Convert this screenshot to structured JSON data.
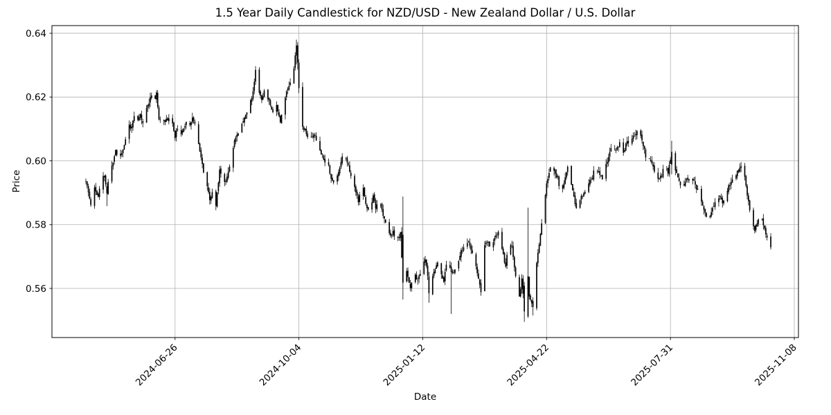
{
  "figure": {
    "background": "#ffffff"
  },
  "chart_data": {
    "type": "candlestick",
    "title": "1.5 Year Daily Candlestick for NZD/USD - New Zealand Dollar / U.S. Dollar",
    "xlabel": "Date",
    "ylabel": "Price",
    "grid": true,
    "legend": null,
    "candle_color": "#000000",
    "grid_color": "#b0b0b0",
    "frame_color": "#000000",
    "start_date": "2024-04-15",
    "total_days": 554,
    "ylim": [
      0.5446,
      0.6424
    ],
    "y_ticks": [
      {
        "value": 0.56,
        "label": "0.56"
      },
      {
        "value": 0.58,
        "label": "0.58"
      },
      {
        "value": 0.6,
        "label": "0.60"
      },
      {
        "value": 0.62,
        "label": "0.62"
      },
      {
        "value": 0.64,
        "label": "0.64"
      }
    ],
    "x_ticks": [
      {
        "day": 72,
        "label": "2024-06-26"
      },
      {
        "day": 172,
        "label": "2024-10-04"
      },
      {
        "day": 272,
        "label": "2025-01-12"
      },
      {
        "day": 372,
        "label": "2025-04-22"
      },
      {
        "day": 472,
        "label": "2025-07-31"
      },
      {
        "day": 572,
        "label": "2025-11-08"
      }
    ],
    "price_range_observed": {
      "low": 0.5495,
      "high": 0.638
    },
    "keypoints_day_close": [
      [
        0,
        0.5935
      ],
      [
        4,
        0.5865
      ],
      [
        7,
        0.5915
      ],
      [
        10,
        0.5885
      ],
      [
        12,
        0.5935
      ],
      [
        15,
        0.5955
      ],
      [
        17,
        0.5898
      ],
      [
        19,
        0.5965
      ],
      [
        22,
        0.5995
      ],
      [
        24,
        0.6035
      ],
      [
        26,
        0.6
      ],
      [
        29,
        0.6025
      ],
      [
        32,
        0.6065
      ],
      [
        34,
        0.6125
      ],
      [
        36,
        0.61
      ],
      [
        39,
        0.6135
      ],
      [
        41,
        0.6115
      ],
      [
        44,
        0.6145
      ],
      [
        46,
        0.6115
      ],
      [
        49,
        0.6165
      ],
      [
        51,
        0.6185
      ],
      [
        53,
        0.621
      ],
      [
        55,
        0.6175
      ],
      [
        57,
        0.6215
      ],
      [
        59,
        0.6125
      ],
      [
        62,
        0.6135
      ],
      [
        64,
        0.6125
      ],
      [
        67,
        0.6135
      ],
      [
        70,
        0.6115
      ],
      [
        72,
        0.6075
      ],
      [
        74,
        0.6105
      ],
      [
        76,
        0.6065
      ],
      [
        78,
        0.609
      ],
      [
        81,
        0.6125
      ],
      [
        84,
        0.6115
      ],
      [
        86,
        0.6135
      ],
      [
        89,
        0.61
      ],
      [
        92,
        0.6035
      ],
      [
        95,
        0.5965
      ],
      [
        98,
        0.592
      ],
      [
        100,
        0.5875
      ],
      [
        102,
        0.59
      ],
      [
        105,
        0.586
      ],
      [
        108,
        0.5975
      ],
      [
        111,
        0.5925
      ],
      [
        114,
        0.595
      ],
      [
        117,
        0.6005
      ],
      [
        120,
        0.6065
      ],
      [
        123,
        0.6085
      ],
      [
        126,
        0.612
      ],
      [
        129,
        0.6145
      ],
      [
        132,
        0.617
      ],
      [
        135,
        0.6215
      ],
      [
        137,
        0.6285
      ],
      [
        139,
        0.6225
      ],
      [
        142,
        0.6195
      ],
      [
        145,
        0.6225
      ],
      [
        148,
        0.6185
      ],
      [
        151,
        0.6155
      ],
      [
        154,
        0.6175
      ],
      [
        157,
        0.6125
      ],
      [
        159,
        0.617
      ],
      [
        162,
        0.6215
      ],
      [
        165,
        0.625
      ],
      [
        168,
        0.6295
      ],
      [
        170,
        0.6362
      ],
      [
        171,
        0.6308
      ],
      [
        172,
        0.6228
      ],
      [
        175,
        0.611
      ],
      [
        178,
        0.6085
      ],
      [
        181,
        0.6065
      ],
      [
        184,
        0.6085
      ],
      [
        187,
        0.6055
      ],
      [
        190,
        0.6025
      ],
      [
        193,
        0.6
      ],
      [
        196,
        0.5985
      ],
      [
        198,
        0.5945
      ],
      [
        201,
        0.5925
      ],
      [
        204,
        0.5965
      ],
      [
        207,
        0.6015
      ],
      [
        209,
        0.6025
      ],
      [
        212,
        0.5985
      ],
      [
        215,
        0.5935
      ],
      [
        218,
        0.5905
      ],
      [
        220,
        0.5875
      ],
      [
        223,
        0.5935
      ],
      [
        226,
        0.5865
      ],
      [
        229,
        0.5835
      ],
      [
        232,
        0.5895
      ],
      [
        234,
        0.5855
      ],
      [
        237,
        0.5885
      ],
      [
        240,
        0.5825
      ],
      [
        243,
        0.5795
      ],
      [
        246,
        0.5765
      ],
      [
        248,
        0.5775
      ],
      [
        251,
        0.5745
      ],
      [
        254,
        0.5772
      ],
      [
        256,
        0.5618
      ],
      [
        259,
        0.5658
      ],
      [
        262,
        0.56
      ],
      [
        265,
        0.5645
      ],
      [
        268,
        0.5625
      ],
      [
        271,
        0.5655
      ],
      [
        274,
        0.5695
      ],
      [
        276,
        0.5635
      ],
      [
        277,
        0.5585
      ],
      [
        281,
        0.5655
      ],
      [
        284,
        0.568
      ],
      [
        287,
        0.5645
      ],
      [
        289,
        0.5625
      ],
      [
        292,
        0.5695
      ],
      [
        295,
        0.5652
      ],
      [
        298,
        0.5655
      ],
      [
        301,
        0.569
      ],
      [
        303,
        0.5715
      ],
      [
        306,
        0.5735
      ],
      [
        309,
        0.5745
      ],
      [
        312,
        0.5705
      ],
      [
        315,
        0.5675
      ],
      [
        317,
        0.5625
      ],
      [
        319,
        0.559
      ],
      [
        322,
        0.5735
      ],
      [
        325,
        0.5745
      ],
      [
        327,
        0.5725
      ],
      [
        330,
        0.5755
      ],
      [
        333,
        0.5775
      ],
      [
        336,
        0.5725
      ],
      [
        339,
        0.5665
      ],
      [
        341,
        0.5745
      ],
      [
        344,
        0.5735
      ],
      [
        347,
        0.5635
      ],
      [
        350,
        0.5575
      ],
      [
        352,
        0.563
      ],
      [
        354,
        0.5528
      ],
      [
        357,
        0.5638
      ],
      [
        358,
        0.5575
      ],
      [
        361,
        0.5542
      ],
      [
        364,
        0.5675
      ],
      [
        367,
        0.5775
      ],
      [
        369,
        0.5835
      ],
      [
        372,
        0.5925
      ],
      [
        375,
        0.5985
      ],
      [
        378,
        0.5965
      ],
      [
        381,
        0.5945
      ],
      [
        383,
        0.589
      ],
      [
        386,
        0.5925
      ],
      [
        389,
        0.5985
      ],
      [
        392,
        0.593
      ],
      [
        395,
        0.5865
      ],
      [
        397,
        0.5845
      ],
      [
        400,
        0.5885
      ],
      [
        403,
        0.5905
      ],
      [
        406,
        0.593
      ],
      [
        409,
        0.5945
      ],
      [
        411,
        0.5985
      ],
      [
        414,
        0.5965
      ],
      [
        417,
        0.5945
      ],
      [
        420,
        0.5985
      ],
      [
        423,
        0.6025
      ],
      [
        425,
        0.6045
      ],
      [
        428,
        0.6035
      ],
      [
        431,
        0.6055
      ],
      [
        434,
        0.6025
      ],
      [
        437,
        0.6065
      ],
      [
        439,
        0.6045
      ],
      [
        442,
        0.6075
      ],
      [
        445,
        0.6095
      ],
      [
        448,
        0.6075
      ],
      [
        451,
        0.6035
      ],
      [
        453,
        0.5995
      ],
      [
        456,
        0.6005
      ],
      [
        459,
        0.5965
      ],
      [
        462,
        0.5945
      ],
      [
        465,
        0.5955
      ],
      [
        467,
        0.5985
      ],
      [
        470,
        0.5965
      ],
      [
        473,
        0.6028
      ],
      [
        475,
        0.5985
      ],
      [
        478,
        0.5945
      ],
      [
        481,
        0.5905
      ],
      [
        484,
        0.5935
      ],
      [
        487,
        0.5945
      ],
      [
        489,
        0.5955
      ],
      [
        492,
        0.5925
      ],
      [
        495,
        0.5895
      ],
      [
        498,
        0.5855
      ],
      [
        501,
        0.5825
      ],
      [
        503,
        0.5815
      ],
      [
        506,
        0.5855
      ],
      [
        509,
        0.5875
      ],
      [
        512,
        0.5885
      ],
      [
        514,
        0.5865
      ],
      [
        517,
        0.5905
      ],
      [
        520,
        0.5925
      ],
      [
        523,
        0.5945
      ],
      [
        526,
        0.5965
      ],
      [
        528,
        0.5975
      ],
      [
        531,
        0.5985
      ],
      [
        534,
        0.5895
      ],
      [
        537,
        0.5825
      ],
      [
        540,
        0.5785
      ],
      [
        542,
        0.5805
      ],
      [
        545,
        0.5825
      ],
      [
        548,
        0.5785
      ],
      [
        551,
        0.5745
      ],
      [
        553,
        0.5725
      ]
    ],
    "special_candles": [
      {
        "day": 17,
        "o": 0.592,
        "h": 0.593,
        "l": 0.5858,
        "c": 0.5898
      },
      {
        "day": 137,
        "o": 0.6248,
        "h": 0.6297,
        "l": 0.6238,
        "c": 0.6285
      },
      {
        "day": 170,
        "o": 0.633,
        "h": 0.638,
        "l": 0.6302,
        "c": 0.6362
      },
      {
        "day": 171,
        "o": 0.6362,
        "h": 0.6372,
        "l": 0.6286,
        "c": 0.6308
      },
      {
        "day": 172,
        "o": 0.6308,
        "h": 0.6318,
        "l": 0.6212,
        "c": 0.6228
      },
      {
        "day": 256,
        "o": 0.5768,
        "h": 0.5888,
        "l": 0.5565,
        "c": 0.5618
      },
      {
        "day": 277,
        "o": 0.5638,
        "h": 0.5652,
        "l": 0.5555,
        "c": 0.5585
      },
      {
        "day": 295,
        "o": 0.5668,
        "h": 0.5682,
        "l": 0.552,
        "c": 0.5652
      },
      {
        "day": 354,
        "o": 0.5608,
        "h": 0.562,
        "l": 0.5495,
        "c": 0.5528
      },
      {
        "day": 357,
        "o": 0.5512,
        "h": 0.5853,
        "l": 0.5508,
        "c": 0.5638
      },
      {
        "day": 361,
        "o": 0.556,
        "h": 0.5572,
        "l": 0.5515,
        "c": 0.5542
      },
      {
        "day": 473,
        "o": 0.5988,
        "h": 0.6063,
        "l": 0.5958,
        "c": 0.6028
      }
    ],
    "noise": {
      "seed": 11,
      "close_jitter": 0.0011,
      "open_gap": 0.0008,
      "wick": 0.0015
    }
  }
}
